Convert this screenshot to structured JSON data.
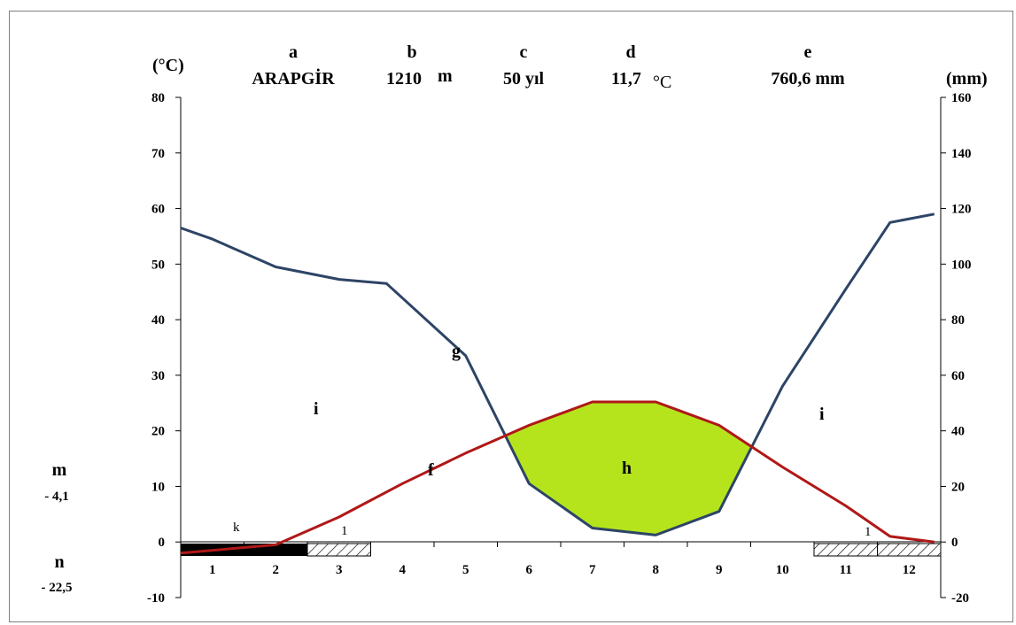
{
  "chart_data": {
    "type": "line",
    "station": "ARAPGİR",
    "header": {
      "labels": [
        "a",
        "b",
        "c",
        "d",
        "e"
      ],
      "station": "ARAPGİR",
      "elevation_value": "1210",
      "elevation_unit": "m",
      "years": "50 yıl",
      "mean_temp_value": "11,7",
      "mean_temp_unit": "°C",
      "precip_total": "760,6 mm"
    },
    "left_axis": {
      "label": "(°C)",
      "min": -10,
      "max": 80,
      "ticks": [
        -10,
        0,
        10,
        20,
        30,
        40,
        50,
        60,
        70,
        80
      ]
    },
    "right_axis": {
      "label": "(mm)",
      "min": -20,
      "max": 160,
      "ticks": [
        -20,
        0,
        20,
        40,
        60,
        80,
        100,
        120,
        140,
        160
      ]
    },
    "months": [
      1,
      2,
      3,
      4,
      5,
      6,
      7,
      8,
      9,
      10,
      11,
      12
    ],
    "series": [
      {
        "label_letter": "f",
        "axis": "left",
        "color": "#b01818",
        "x": [
          0.5,
          2,
          3,
          4,
          5,
          6,
          7,
          8,
          9,
          10,
          11,
          11.7,
          12.4
        ],
        "y": [
          -2,
          -0.5,
          4.5,
          10.5,
          16,
          21,
          25.2,
          25.2,
          21,
          13.5,
          6.5,
          1,
          0
        ]
      },
      {
        "label_letter": "g",
        "axis": "right",
        "color": "#2d4466",
        "x": [
          0.5,
          1,
          2,
          3,
          3.75,
          5,
          6,
          7,
          8,
          9,
          10,
          11,
          11.7,
          12.4
        ],
        "y": [
          113,
          109,
          99,
          94.5,
          93,
          67,
          21,
          5,
          2.5,
          11,
          56,
          91,
          115,
          118
        ]
      }
    ],
    "humid_period_fill": "#b5e41d",
    "annotations": {
      "f": "f",
      "g": "g",
      "h": "h",
      "i": "i",
      "k": "k",
      "l": "1",
      "m_letter": "m",
      "m_value": "- 4,1",
      "n_letter": "n",
      "n_value": "- 22,5"
    },
    "frost_bars": {
      "solid_months": [
        0.5,
        2.5
      ],
      "hatched_segments": [
        [
          2.5,
          3.5
        ],
        [
          10.5,
          11.5
        ],
        [
          11.5,
          12.5
        ]
      ]
    },
    "grid": false,
    "legend": "none"
  }
}
